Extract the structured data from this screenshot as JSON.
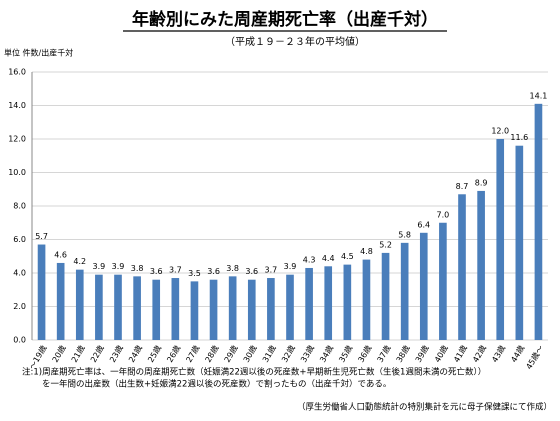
{
  "chart_data": {
    "type": "bar",
    "title": "年齢別にみた周産期死亡率（出産千対）",
    "subtitle": "（平成１９－２３年の平均値）",
    "y_label": "単位 件数/出産千対",
    "categories": [
      "～19歳",
      "20歳",
      "21歳",
      "22歳",
      "23歳",
      "24歳",
      "25歳",
      "26歳",
      "27歳",
      "28歳",
      "29歳",
      "30歳",
      "31歳",
      "32歳",
      "33歳",
      "34歳",
      "35歳",
      "36歳",
      "37歳",
      "38歳",
      "39歳",
      "40歳",
      "41歳",
      "42歳",
      "43歳",
      "44歳",
      "45歳～"
    ],
    "values": [
      5.7,
      4.6,
      4.2,
      3.9,
      3.9,
      3.8,
      3.6,
      3.7,
      3.5,
      3.6,
      3.8,
      3.6,
      3.7,
      3.9,
      4.3,
      4.4,
      4.5,
      4.8,
      5.2,
      5.8,
      6.4,
      7.0,
      8.7,
      8.9,
      12.0,
      11.6,
      14.1
    ],
    "value_labels": [
      "5.7",
      "4.6",
      "4.2",
      "3.9",
      "3.9",
      "3.8",
      "3.6",
      "3.7",
      "3.5",
      "3.6",
      "3.8",
      "3.6",
      "3.7",
      "3.9",
      "4.3",
      "4.4",
      "4.5",
      "4.8",
      "5.2",
      "5.8",
      "6.4",
      "7.0",
      "8.7",
      "8.9",
      "12.0",
      "11.6",
      "14.1"
    ],
    "color": "#4a7ebb",
    "ylim": [
      0,
      16
    ],
    "yticks": [
      {
        "value": 0,
        "label": "0.0"
      },
      {
        "value": 2,
        "label": "2.0"
      },
      {
        "value": 4,
        "label": "4.0"
      },
      {
        "value": 6,
        "label": "6.0"
      },
      {
        "value": 8,
        "label": "8.0"
      },
      {
        "value": 10,
        "label": "10.0"
      },
      {
        "value": 12,
        "label": "12.0"
      },
      {
        "value": 14,
        "label": "14.0"
      },
      {
        "value": 16,
        "label": "16.0"
      }
    ],
    "grid": true,
    "notes": [
      "注:1)周産期死亡率は、一年間の周産期死亡数（妊娠満22週以後の死産数+早期新生児死亡数（生後1週間未満の死亡数））",
      "を一年間の出産数（出生数+妊娠満22週以後の死産数）で割ったもの（出産千対）である。"
    ],
    "source": "（厚生労働省人口動態統計の特別集計を元に母子保健課にて作成）"
  }
}
